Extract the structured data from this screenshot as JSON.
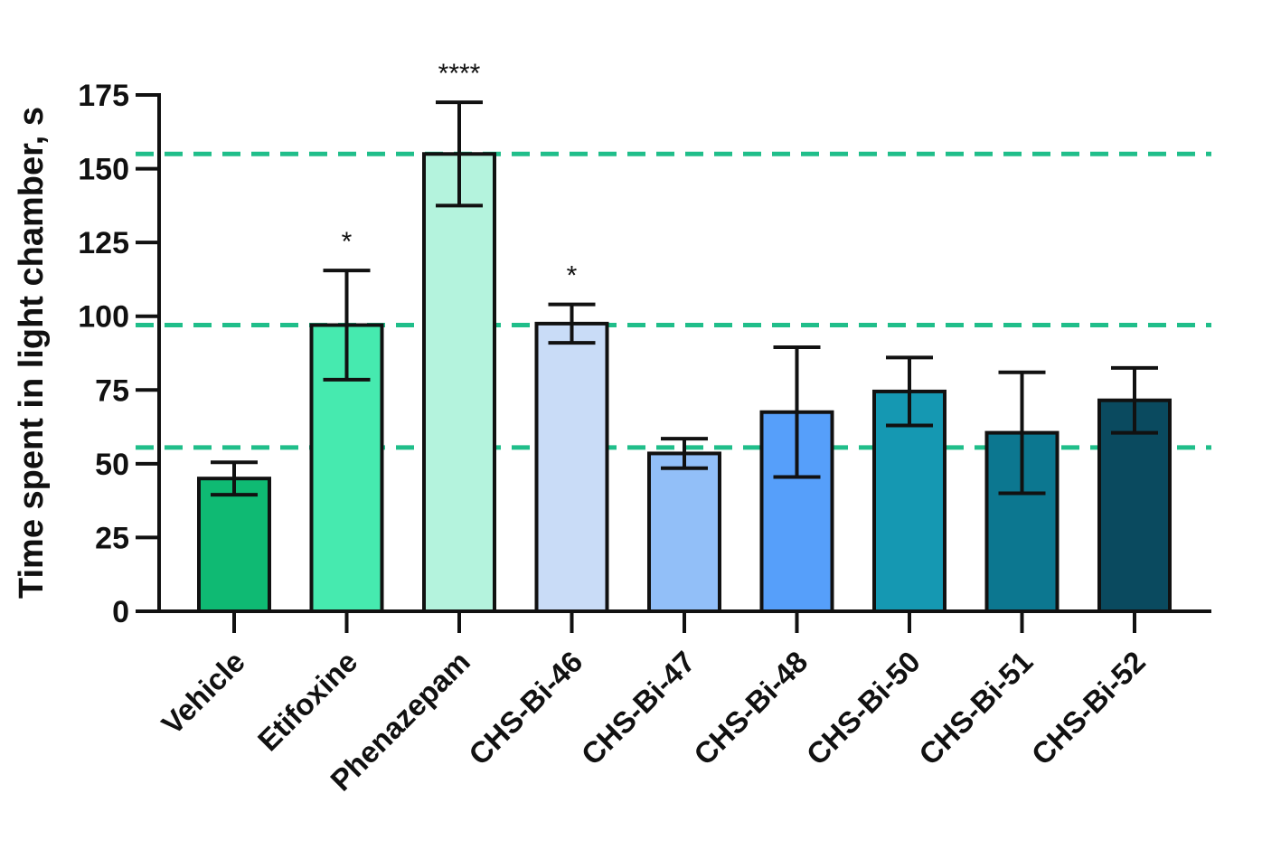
{
  "chart_data": {
    "type": "bar",
    "ylabel": "Time spent in light chamber, s",
    "xlabel": "",
    "ylim": [
      0,
      175
    ],
    "yticks": [
      0,
      25,
      50,
      75,
      100,
      125,
      150,
      175
    ],
    "grid": false,
    "categories": [
      "Vehicle",
      "Etifoxine",
      "Phenazepam",
      "CHS-Bi-46",
      "CHS-Bi-47",
      "CHS-Bi-48",
      "CHS-Bi-50",
      "CHS-Bi-51",
      "CHS-Bi-52"
    ],
    "values": [
      45,
      97,
      155,
      97.5,
      53.5,
      67.5,
      74.5,
      60.5,
      71.5
    ],
    "error": [
      5.5,
      18.5,
      17.5,
      6.5,
      5,
      22,
      11.5,
      20.5,
      11
    ],
    "significance": [
      "",
      "*",
      "****",
      "*",
      "",
      "",
      "",
      "",
      ""
    ],
    "bar_colors": [
      "#0FBA73",
      "#46EAAF",
      "#B4F3DD",
      "#C9DCF7",
      "#92BFF8",
      "#569FFA",
      "#1598B2",
      "#0C7790",
      "#0A4A5F"
    ],
    "reference_lines": [
      55.5,
      97,
      155
    ],
    "reference_line_color": "#20BE8A",
    "axis_color": "#111111"
  }
}
